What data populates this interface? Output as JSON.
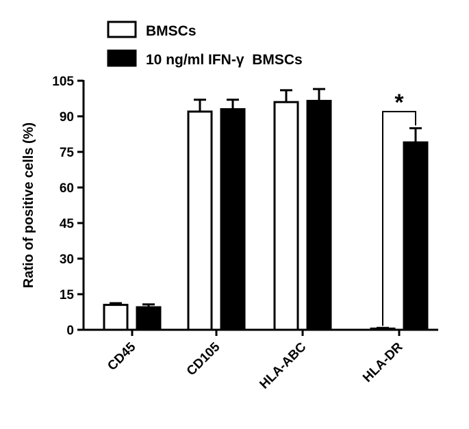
{
  "chart_data": {
    "type": "bar",
    "title": "",
    "xlabel": "",
    "ylabel": "Ratio of positive cells (%)",
    "ylim": [
      0,
      105
    ],
    "yticks": [
      0,
      15,
      30,
      45,
      60,
      75,
      90,
      105
    ],
    "categories": [
      "CD45",
      "CD105",
      "HLA-ABC",
      "HLA-DR"
    ],
    "series": [
      {
        "name": "BMSCs",
        "fill": "#ffffff",
        "stroke": "#000000",
        "values": [
          10.5,
          92,
          96,
          0.5
        ],
        "errors": [
          0.7,
          5,
          5,
          0.3
        ]
      },
      {
        "name": "10 ng/ml IFN-γ  BMSCs",
        "fill": "#000000",
        "stroke": "#000000",
        "values": [
          9.5,
          93,
          96.5,
          79
        ],
        "errors": [
          1.2,
          4,
          5,
          6
        ]
      }
    ],
    "legend": "top-left",
    "grid": false,
    "annotations": [
      {
        "text": "*",
        "category": "HLA-DR",
        "type": "significance-bracket"
      }
    ]
  }
}
